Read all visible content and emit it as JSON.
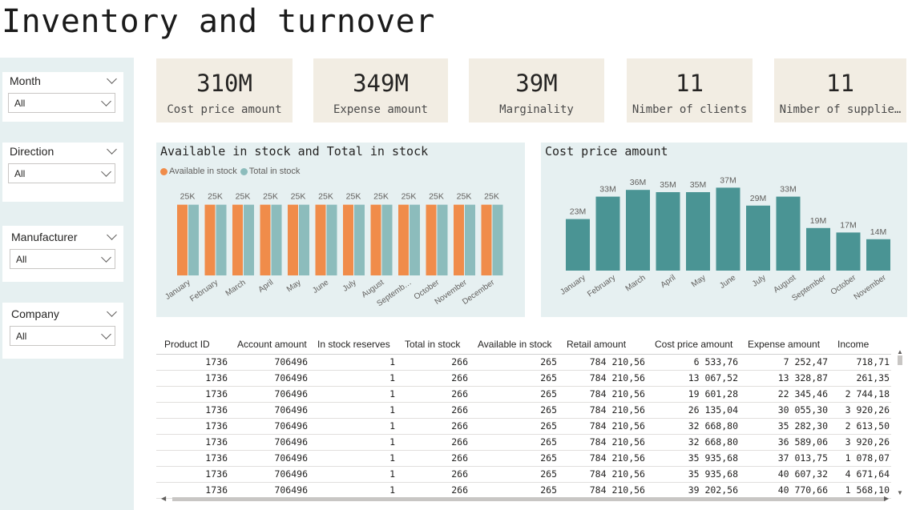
{
  "page": {
    "title": "Inventory and turnover"
  },
  "filters": [
    {
      "title": "Month",
      "value": "All"
    },
    {
      "title": "Direction",
      "value": "All"
    },
    {
      "title": "Manufacturer",
      "value": "All"
    },
    {
      "title": "Company",
      "value": "All"
    }
  ],
  "kpis": [
    {
      "value": "310M",
      "label": "Cost price amount"
    },
    {
      "value": "349M",
      "label": "Expense amount"
    },
    {
      "value": "39M",
      "label": "Marginality"
    },
    {
      "value": "11",
      "label": "Nimber of clients"
    },
    {
      "value": "11",
      "label": "Nimber of supplie…"
    }
  ],
  "colors": {
    "available": "#f08c4a",
    "total": "#8cbcbc",
    "cost": "#4a9494",
    "panel": "#e6f0f1",
    "kpi_bg": "#f2ede3"
  },
  "chart_data": [
    {
      "type": "bar",
      "title": "Available in stock and Total in stock",
      "categories": [
        "January",
        "February",
        "March",
        "April",
        "May",
        "June",
        "July",
        "August",
        "Septemb…",
        "October",
        "November",
        "December"
      ],
      "series": [
        {
          "name": "Available in stock",
          "values": [
            25000,
            25000,
            25000,
            25000,
            25000,
            25000,
            25000,
            25000,
            25000,
            25000,
            25000,
            25000
          ]
        },
        {
          "name": "Total in stock",
          "values": [
            25000,
            25000,
            25000,
            25000,
            25000,
            25000,
            25000,
            25000,
            25000,
            25000,
            25000,
            25000
          ]
        }
      ],
      "data_labels": [
        "25K",
        "25K",
        "25K",
        "25K",
        "25K",
        "25K",
        "25K",
        "25K",
        "25K",
        "25K",
        "25K",
        "25K"
      ],
      "ylim": [
        0,
        30000
      ],
      "legend": "top-left",
      "grid": false
    },
    {
      "type": "bar",
      "title": "Cost price amount",
      "categories": [
        "January",
        "February",
        "March",
        "April",
        "May",
        "June",
        "July",
        "August",
        "September",
        "October",
        "November"
      ],
      "values": [
        23,
        33,
        36,
        35,
        35,
        37,
        29,
        33,
        19,
        17,
        14
      ],
      "data_labels": [
        "23M",
        "33M",
        "36M",
        "35M",
        "35M",
        "37M",
        "29M",
        "33M",
        "19M",
        "17M",
        "14M"
      ],
      "ylim": [
        0,
        40
      ],
      "grid": false
    }
  ],
  "table": {
    "columns": [
      "Product ID",
      "Account amount",
      "In stock reserves",
      "Total in stock",
      "Available in stock",
      "Retail amount",
      "Cost price amount",
      "Expense amount",
      "Income"
    ],
    "rows": [
      [
        "1736",
        "706496",
        "1",
        "266",
        "265",
        "784 210,56",
        "6 533,76",
        "7 252,47",
        "718,71"
      ],
      [
        "1736",
        "706496",
        "1",
        "266",
        "265",
        "784 210,56",
        "13 067,52",
        "13 328,87",
        "261,35"
      ],
      [
        "1736",
        "706496",
        "1",
        "266",
        "265",
        "784 210,56",
        "19 601,28",
        "22 345,46",
        "2 744,18"
      ],
      [
        "1736",
        "706496",
        "1",
        "266",
        "265",
        "784 210,56",
        "26 135,04",
        "30 055,30",
        "3 920,26"
      ],
      [
        "1736",
        "706496",
        "1",
        "266",
        "265",
        "784 210,56",
        "32 668,80",
        "35 282,30",
        "2 613,50"
      ],
      [
        "1736",
        "706496",
        "1",
        "266",
        "265",
        "784 210,56",
        "32 668,80",
        "36 589,06",
        "3 920,26"
      ],
      [
        "1736",
        "706496",
        "1",
        "266",
        "265",
        "784 210,56",
        "35 935,68",
        "37 013,75",
        "1 078,07"
      ],
      [
        "1736",
        "706496",
        "1",
        "266",
        "265",
        "784 210,56",
        "35 935,68",
        "40 607,32",
        "4 671,64"
      ],
      [
        "1736",
        "706496",
        "1",
        "266",
        "265",
        "784 210,56",
        "39 202,56",
        "40 770,66",
        "1 568,10"
      ]
    ]
  }
}
